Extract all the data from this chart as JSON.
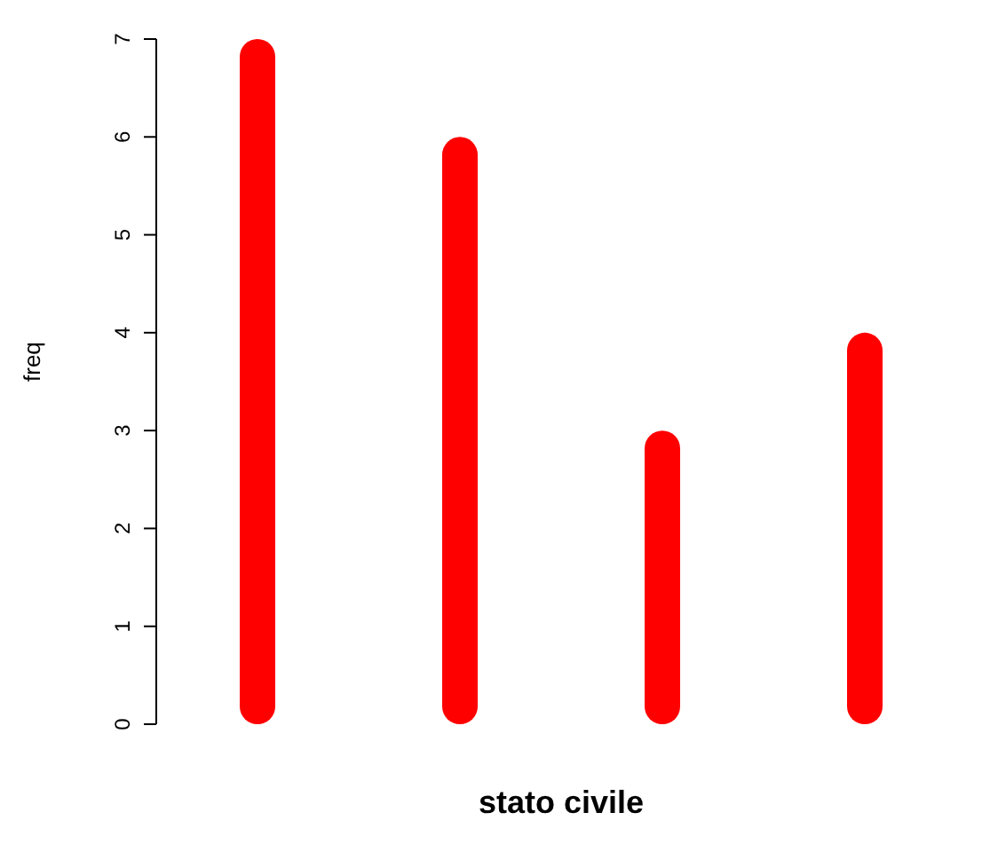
{
  "chart_data": {
    "type": "bar",
    "xlabel": "stato civile",
    "ylabel": "freq",
    "categories": [
      null,
      null,
      null,
      null
    ],
    "values": [
      7,
      6,
      3,
      4
    ],
    "color": "#ff0000",
    "ylim": [
      0,
      7
    ],
    "yticks": [
      0,
      1,
      2,
      3,
      4,
      5,
      6,
      7
    ],
    "grid": false,
    "legend": false
  }
}
